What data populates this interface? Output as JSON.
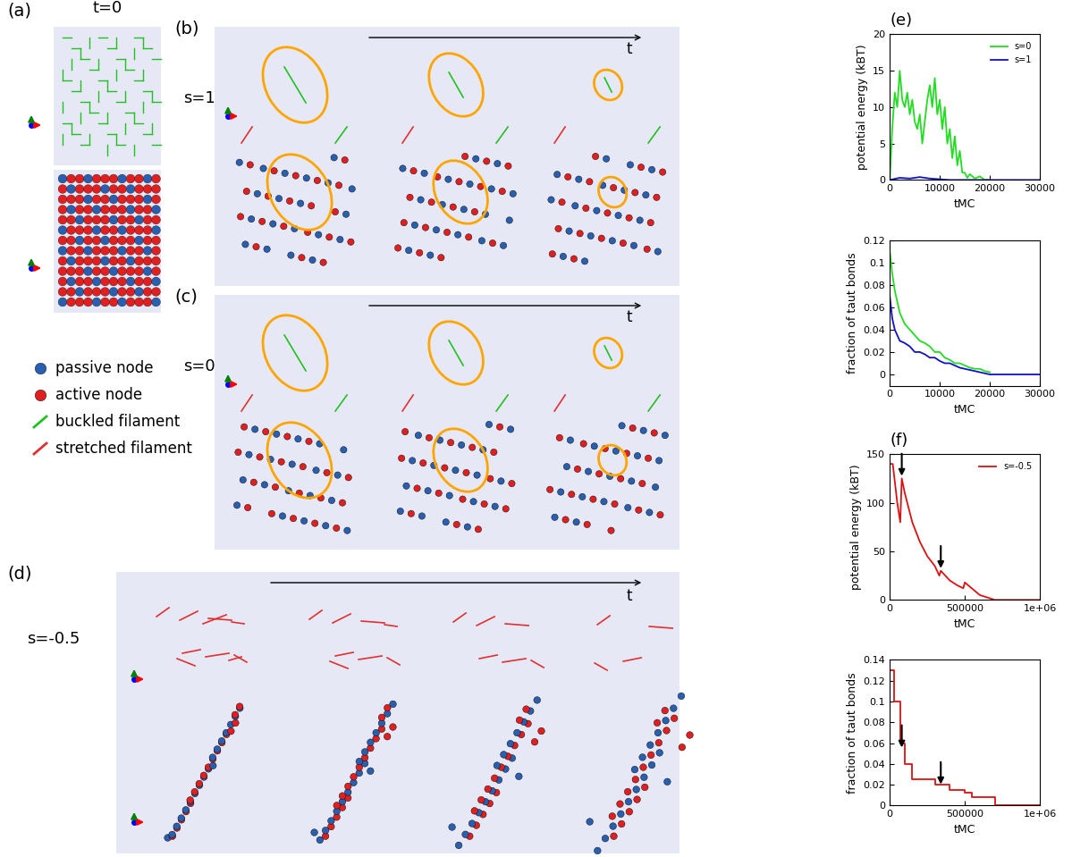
{
  "panels": {
    "a": {
      "label": "(a)",
      "time": "t=0"
    },
    "b": {
      "label": "(b)",
      "s": "s=1",
      "time_axis": "t"
    },
    "c": {
      "label": "(c)",
      "s": "s=0",
      "time_axis": "t"
    },
    "d": {
      "label": "(d)",
      "s": "s=-0.5",
      "time_axis": "t"
    }
  },
  "key_items": [
    {
      "text": "passive node",
      "color": "#2a5fb0",
      "marker": "circle"
    },
    {
      "text": "active node",
      "color": "#e02020",
      "marker": "circle"
    },
    {
      "text": "buckled filament",
      "color": "#22c022",
      "marker": "line"
    },
    {
      "text": "stretched filament",
      "color": "#e03030",
      "marker": "line"
    }
  ],
  "chart_data": [
    {
      "type": "line",
      "label": "(e)",
      "ylabel": "potential energy (kBT)",
      "xlabel": "tMC",
      "xlim": [
        0,
        30000
      ],
      "xticks": [
        0,
        10000,
        20000,
        30000
      ],
      "ylim": [
        0,
        20
      ],
      "yticks": [
        0,
        5,
        10,
        15,
        20
      ],
      "legend": "upper right",
      "series": [
        {
          "name": "s=0",
          "color": "#22dd22",
          "line_style": "solid",
          "x": [
            0,
            500,
            1000,
            1500,
            2000,
            2500,
            3000,
            3500,
            4000,
            4500,
            5000,
            5500,
            6000,
            6500,
            7000,
            7500,
            8000,
            8500,
            9000,
            9500,
            10000,
            10500,
            11000,
            11500,
            12000,
            12500,
            13000,
            13500,
            14000,
            14500,
            15000,
            15500,
            16000,
            17000,
            18000,
            19000,
            20000
          ],
          "values": [
            0,
            7,
            12,
            10,
            15,
            11,
            10,
            12,
            9,
            11,
            8,
            7,
            9,
            5,
            8,
            11,
            13,
            10,
            14,
            9,
            11,
            7,
            10,
            5,
            7,
            3,
            6,
            2,
            4,
            1,
            1,
            0.3,
            0.8,
            0.2,
            0.5,
            0,
            0
          ]
        },
        {
          "name": "s=1",
          "color": "#1010cc",
          "line_style": "solid",
          "x": [
            0,
            2000,
            4000,
            6000,
            8000,
            10000,
            12000,
            14000,
            16000,
            18000,
            20000,
            22000,
            24000,
            26000,
            28000,
            30000
          ],
          "values": [
            0,
            0.3,
            0.2,
            0.4,
            0.2,
            0.1,
            0,
            0,
            0,
            0,
            0,
            0,
            0,
            0,
            0,
            0
          ]
        }
      ]
    },
    {
      "type": "line",
      "ylabel": "fraction of taut bonds",
      "xlabel": "tMC",
      "xlim": [
        0,
        30000
      ],
      "xticks": [
        0,
        10000,
        20000,
        30000
      ],
      "ylim": [
        -0.01,
        0.12
      ],
      "yticks": [
        0,
        0.02,
        0.04,
        0.06,
        0.08,
        0.1,
        0.12
      ],
      "series": [
        {
          "name": "s=0",
          "color": "#22dd22",
          "line_style": "solid",
          "x": [
            0,
            500,
            1000,
            1500,
            2000,
            3000,
            4000,
            5000,
            6000,
            7000,
            8000,
            9000,
            10000,
            11000,
            12000,
            13000,
            14000,
            15000,
            16000,
            17000,
            18000,
            19000,
            20000
          ],
          "values": [
            0.11,
            0.09,
            0.075,
            0.065,
            0.055,
            0.045,
            0.04,
            0.035,
            0.03,
            0.028,
            0.025,
            0.02,
            0.02,
            0.015,
            0.013,
            0.01,
            0.01,
            0.008,
            0.006,
            0.005,
            0.005,
            0.003,
            0.002
          ]
        },
        {
          "name": "s=1",
          "color": "#1010cc",
          "line_style": "solid",
          "x": [
            0,
            500,
            1000,
            1500,
            2000,
            3000,
            4000,
            5000,
            6000,
            7000,
            8000,
            9000,
            10000,
            11000,
            12000,
            13000,
            14000,
            15000,
            16000,
            17000,
            18000,
            19000,
            20000,
            25000,
            30000
          ],
          "values": [
            0.07,
            0.05,
            0.04,
            0.035,
            0.03,
            0.028,
            0.025,
            0.02,
            0.02,
            0.018,
            0.015,
            0.015,
            0.012,
            0.01,
            0.01,
            0.008,
            0.006,
            0.005,
            0.004,
            0.003,
            0.002,
            0.001,
            0,
            0,
            0
          ]
        }
      ]
    },
    {
      "type": "line",
      "label": "(f)",
      "ylabel": "potential energy (kBT)",
      "xlabel": "tMC",
      "xlim": [
        0,
        1000000
      ],
      "xticks": [
        0,
        500000,
        {
          "value": 1000000,
          "label": "1e+06"
        }
      ],
      "ylim": [
        0,
        150
      ],
      "yticks": [
        0,
        50,
        100,
        150
      ],
      "legend": "upper right",
      "arrows": [
        80000,
        340000
      ],
      "series": [
        {
          "name": "s=-0.5",
          "color": "#dd1111",
          "line_style": "solid",
          "x": [
            0,
            20000,
            50000,
            70000,
            80000,
            100000,
            150000,
            200000,
            250000,
            300000,
            330000,
            340000,
            400000,
            450000,
            490000,
            500000,
            600000,
            700000,
            1000000
          ],
          "values": [
            140,
            140,
            100,
            80,
            125,
            110,
            80,
            60,
            45,
            35,
            25,
            30,
            20,
            15,
            12,
            18,
            5,
            0,
            0
          ]
        }
      ]
    },
    {
      "type": "line",
      "ylabel": "fraction of taut bonds",
      "xlabel": "tMC",
      "xlim": [
        0,
        1000000
      ],
      "xticks": [
        0,
        500000,
        {
          "value": 1000000,
          "label": "1e+06"
        }
      ],
      "ylim": [
        0,
        0.14
      ],
      "yticks": [
        0,
        0.02,
        0.04,
        0.06,
        0.08,
        0.1,
        0.12,
        0.14
      ],
      "arrows": [
        80000,
        340000
      ],
      "series": [
        {
          "name": "s=-0.5",
          "color": "#dd1111",
          "line_style": "steps",
          "x": [
            0,
            30000,
            70000,
            100000,
            150000,
            300000,
            400000,
            500000,
            550000,
            700000,
            1000000
          ],
          "values": [
            0.13,
            0.1,
            0.06,
            0.04,
            0.025,
            0.02,
            0.015,
            0.012,
            0.008,
            0,
            0
          ]
        }
      ]
    }
  ]
}
